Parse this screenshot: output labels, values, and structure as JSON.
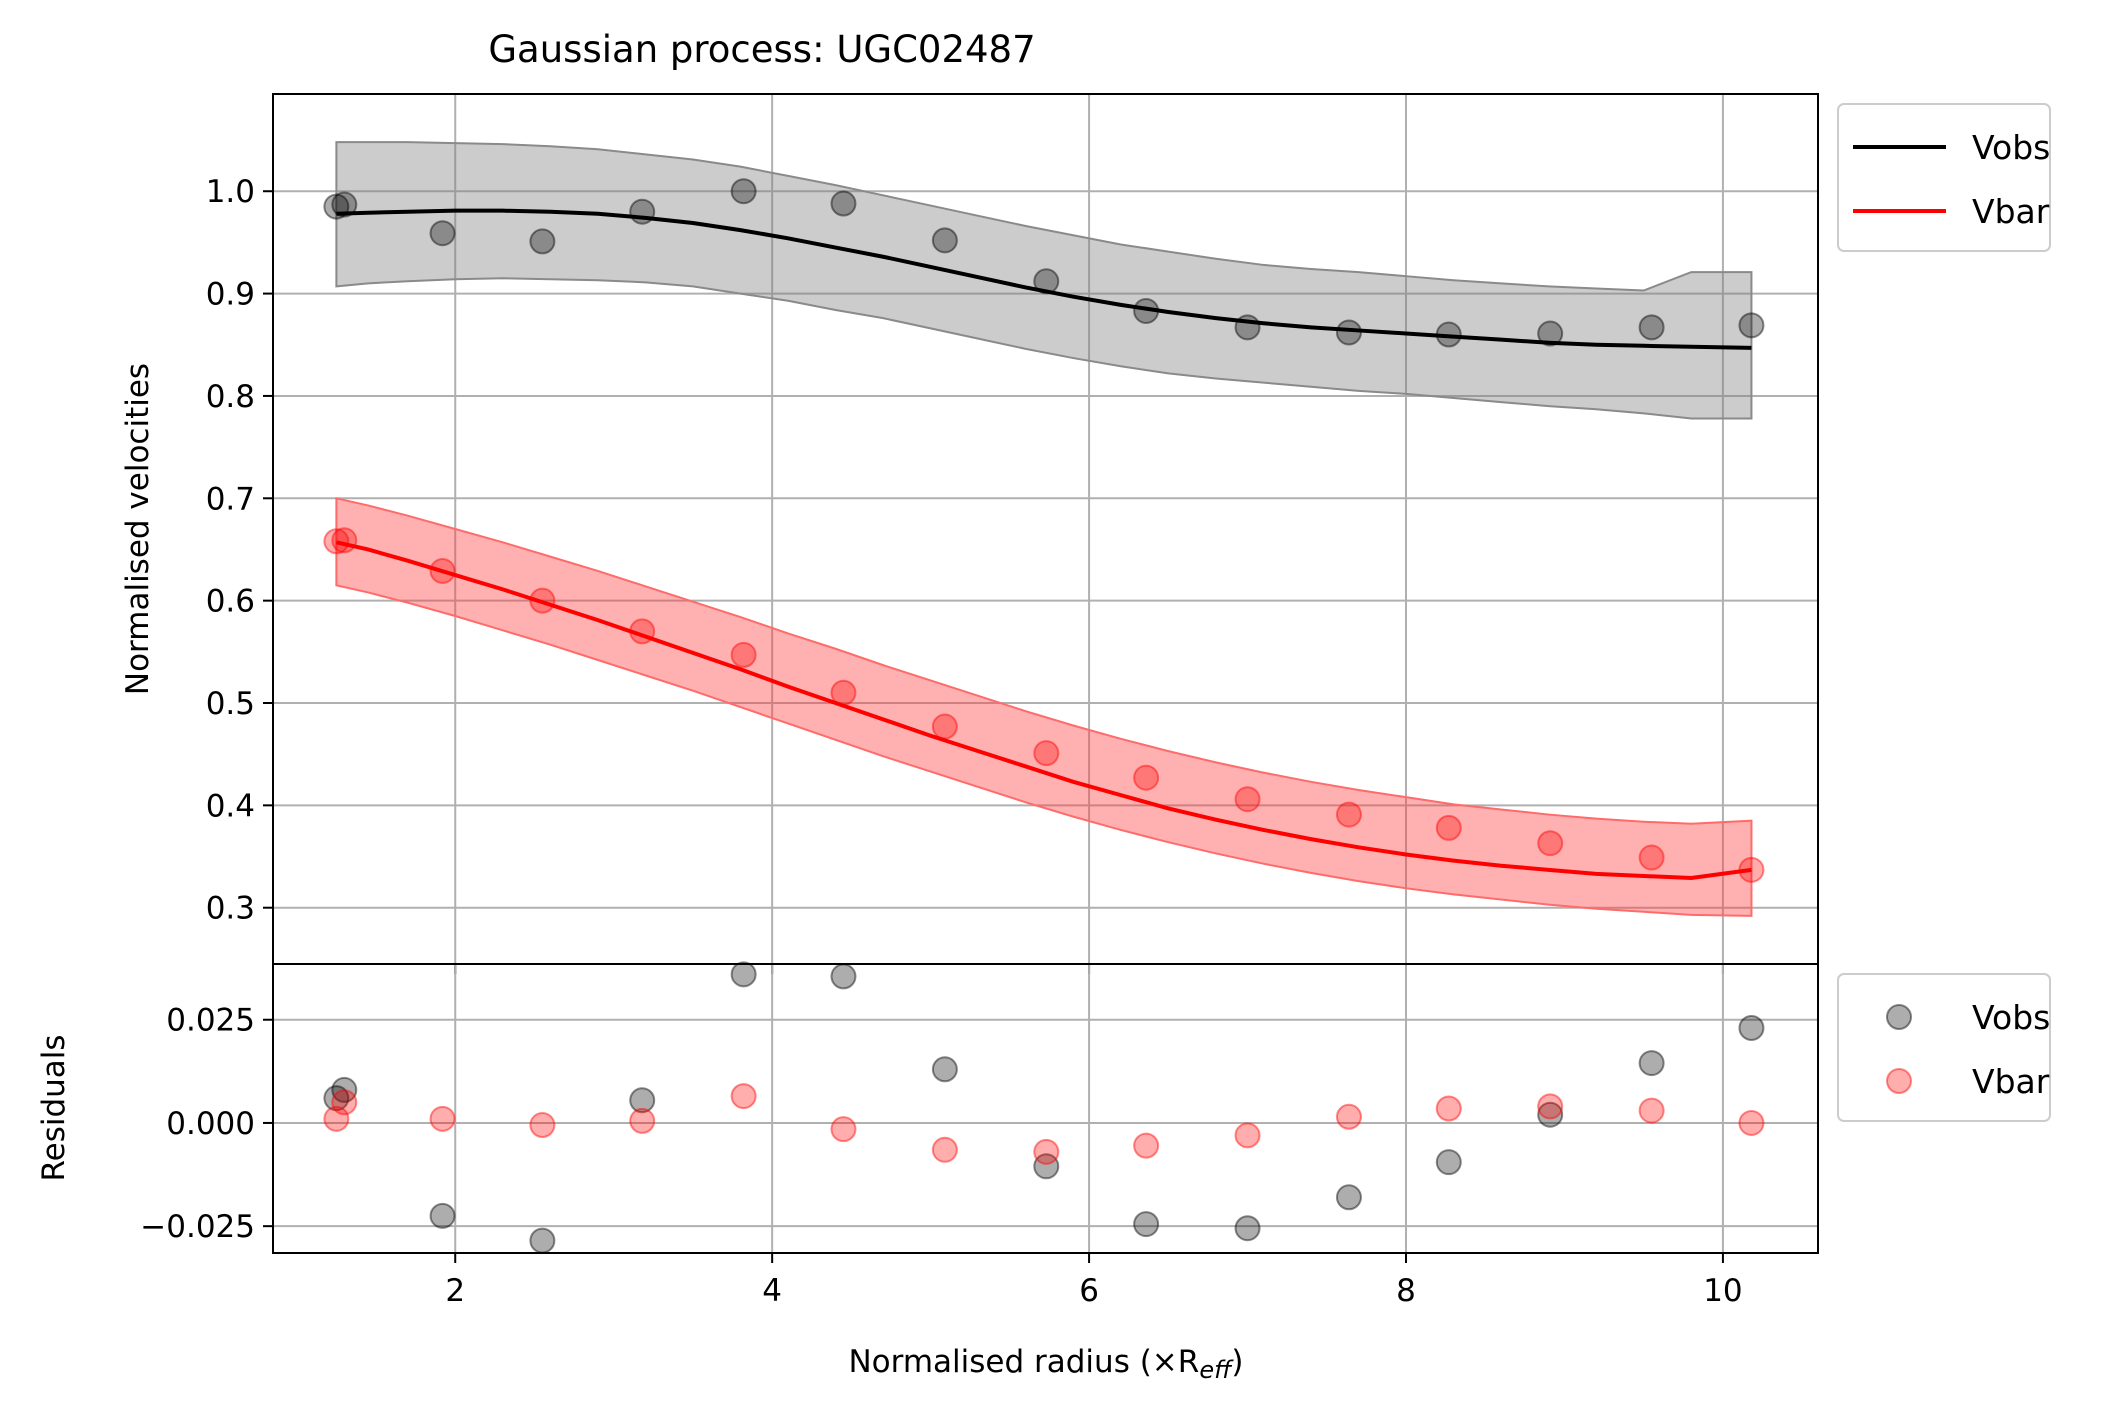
{
  "chart_data": [
    {
      "type": "line",
      "title": "Gaussian process: UGC02487",
      "xlabel": "",
      "ylabel": "Normalised velocities",
      "xlim": [
        0.85,
        10.6
      ],
      "ylim": [
        0.245,
        1.095
      ],
      "yticks": [
        "0.3",
        "0.4",
        "0.5",
        "0.6",
        "0.7",
        "0.8",
        "0.9",
        "1.0"
      ],
      "grid": true,
      "legend_position": "outside-top-right",
      "series": [
        {
          "name": "Vobs",
          "color": "#000000",
          "x": [
            1.25,
            1.45,
            1.7,
            2.0,
            2.3,
            2.6,
            2.9,
            3.2,
            3.5,
            3.8,
            4.1,
            4.4,
            4.7,
            5.0,
            5.3,
            5.6,
            5.9,
            6.2,
            6.5,
            6.8,
            7.1,
            7.4,
            7.7,
            8.0,
            8.3,
            8.6,
            8.9,
            9.2,
            9.5,
            9.8,
            10.18
          ],
          "mean": [
            0.978,
            0.979,
            0.98,
            0.981,
            0.981,
            0.98,
            0.978,
            0.974,
            0.969,
            0.962,
            0.954,
            0.945,
            0.936,
            0.926,
            0.916,
            0.906,
            0.897,
            0.889,
            0.882,
            0.876,
            0.871,
            0.867,
            0.864,
            0.861,
            0.858,
            0.855,
            0.852,
            0.85,
            0.849,
            0.848,
            0.847
          ],
          "band_upper": [
            1.048,
            1.048,
            1.048,
            1.047,
            1.046,
            1.044,
            1.041,
            1.036,
            1.031,
            1.024,
            1.015,
            1.006,
            0.996,
            0.986,
            0.976,
            0.966,
            0.957,
            0.948,
            0.941,
            0.934,
            0.928,
            0.924,
            0.921,
            0.917,
            0.913,
            0.91,
            0.907,
            0.905,
            0.903,
            0.921,
            0.921
          ],
          "band_lower": [
            0.907,
            0.91,
            0.912,
            0.914,
            0.915,
            0.914,
            0.913,
            0.911,
            0.907,
            0.9,
            0.893,
            0.884,
            0.876,
            0.866,
            0.856,
            0.846,
            0.837,
            0.829,
            0.822,
            0.817,
            0.813,
            0.809,
            0.805,
            0.802,
            0.798,
            0.794,
            0.79,
            0.787,
            0.783,
            0.778,
            0.778
          ],
          "points_x": [
            1.25,
            1.3,
            1.92,
            2.55,
            3.18,
            3.82,
            4.45,
            5.09,
            5.73,
            6.36,
            7.0,
            7.64,
            8.27,
            8.91,
            9.55,
            10.18
          ],
          "points_y": [
            0.985,
            0.987,
            0.959,
            0.951,
            0.98,
            1.0,
            0.988,
            0.952,
            0.912,
            0.883,
            0.867,
            0.862,
            0.86,
            0.861,
            0.867,
            0.869
          ]
        },
        {
          "name": "Vbar",
          "color": "#ff0000",
          "x": [
            1.25,
            1.45,
            1.7,
            2.0,
            2.3,
            2.6,
            2.9,
            3.2,
            3.5,
            3.8,
            4.1,
            4.4,
            4.7,
            5.0,
            5.3,
            5.6,
            5.9,
            6.2,
            6.5,
            6.8,
            7.1,
            7.4,
            7.7,
            8.0,
            8.3,
            8.6,
            8.9,
            9.2,
            9.5,
            9.8,
            10.18
          ],
          "mean": [
            0.657,
            0.65,
            0.639,
            0.625,
            0.611,
            0.596,
            0.581,
            0.565,
            0.549,
            0.533,
            0.516,
            0.5,
            0.484,
            0.468,
            0.453,
            0.438,
            0.423,
            0.41,
            0.397,
            0.386,
            0.376,
            0.367,
            0.359,
            0.352,
            0.346,
            0.341,
            0.337,
            0.333,
            0.331,
            0.329,
            0.337
          ],
          "band_upper": [
            0.7,
            0.693,
            0.683,
            0.67,
            0.657,
            0.643,
            0.629,
            0.614,
            0.599,
            0.584,
            0.568,
            0.553,
            0.537,
            0.522,
            0.507,
            0.492,
            0.478,
            0.465,
            0.453,
            0.442,
            0.432,
            0.423,
            0.415,
            0.408,
            0.401,
            0.396,
            0.391,
            0.387,
            0.384,
            0.382,
            0.385
          ],
          "band_lower": [
            0.615,
            0.608,
            0.598,
            0.585,
            0.571,
            0.557,
            0.542,
            0.527,
            0.512,
            0.496,
            0.48,
            0.464,
            0.448,
            0.433,
            0.418,
            0.403,
            0.389,
            0.376,
            0.364,
            0.353,
            0.343,
            0.334,
            0.326,
            0.319,
            0.313,
            0.308,
            0.303,
            0.299,
            0.296,
            0.293,
            0.292
          ],
          "points_x": [
            1.25,
            1.3,
            1.92,
            2.55,
            3.18,
            3.82,
            4.45,
            5.09,
            5.73,
            6.36,
            7.0,
            7.64,
            8.27,
            8.91,
            9.55,
            10.18
          ],
          "points_y": [
            0.658,
            0.659,
            0.629,
            0.6,
            0.57,
            0.547,
            0.51,
            0.477,
            0.451,
            0.427,
            0.406,
            0.391,
            0.378,
            0.363,
            0.349,
            0.337
          ]
        }
      ]
    },
    {
      "type": "scatter",
      "title": "",
      "xlabel": "Normalised radius (×R",
      "xlabel_sub": "eff",
      "xlabel_close": ")",
      "ylabel": "Residuals",
      "xlim": [
        0.85,
        10.6
      ],
      "ylim": [
        -0.0315,
        0.0385
      ],
      "xticks": [
        "2",
        "4",
        "6",
        "8",
        "10"
      ],
      "yticks": [
        "−0.025",
        "0.000",
        "0.025"
      ],
      "grid": true,
      "legend_position": "outside-right",
      "series": [
        {
          "name": "Vobs",
          "color": "#000000",
          "x": [
            1.25,
            1.3,
            1.92,
            2.55,
            3.18,
            3.82,
            4.45,
            5.09,
            5.73,
            6.36,
            7.0,
            7.64,
            8.27,
            8.91,
            9.55,
            10.18
          ],
          "y": [
            0.006,
            0.008,
            -0.0225,
            -0.0285,
            0.0055,
            0.036,
            0.0355,
            0.013,
            -0.0105,
            -0.0245,
            -0.0255,
            -0.018,
            -0.0095,
            0.002,
            0.0145,
            0.023
          ]
        },
        {
          "name": "Vbar",
          "color": "#ff0000",
          "x": [
            1.25,
            1.3,
            1.92,
            2.55,
            3.18,
            3.82,
            4.45,
            5.09,
            5.73,
            6.36,
            7.0,
            7.64,
            8.27,
            8.91,
            9.55,
            10.18
          ],
          "y": [
            0.001,
            0.005,
            0.001,
            -0.0005,
            0.0005,
            0.0065,
            -0.0015,
            -0.0065,
            -0.007,
            -0.0055,
            -0.003,
            0.0015,
            0.0035,
            0.004,
            0.003,
            0.0
          ]
        }
      ]
    }
  ]
}
